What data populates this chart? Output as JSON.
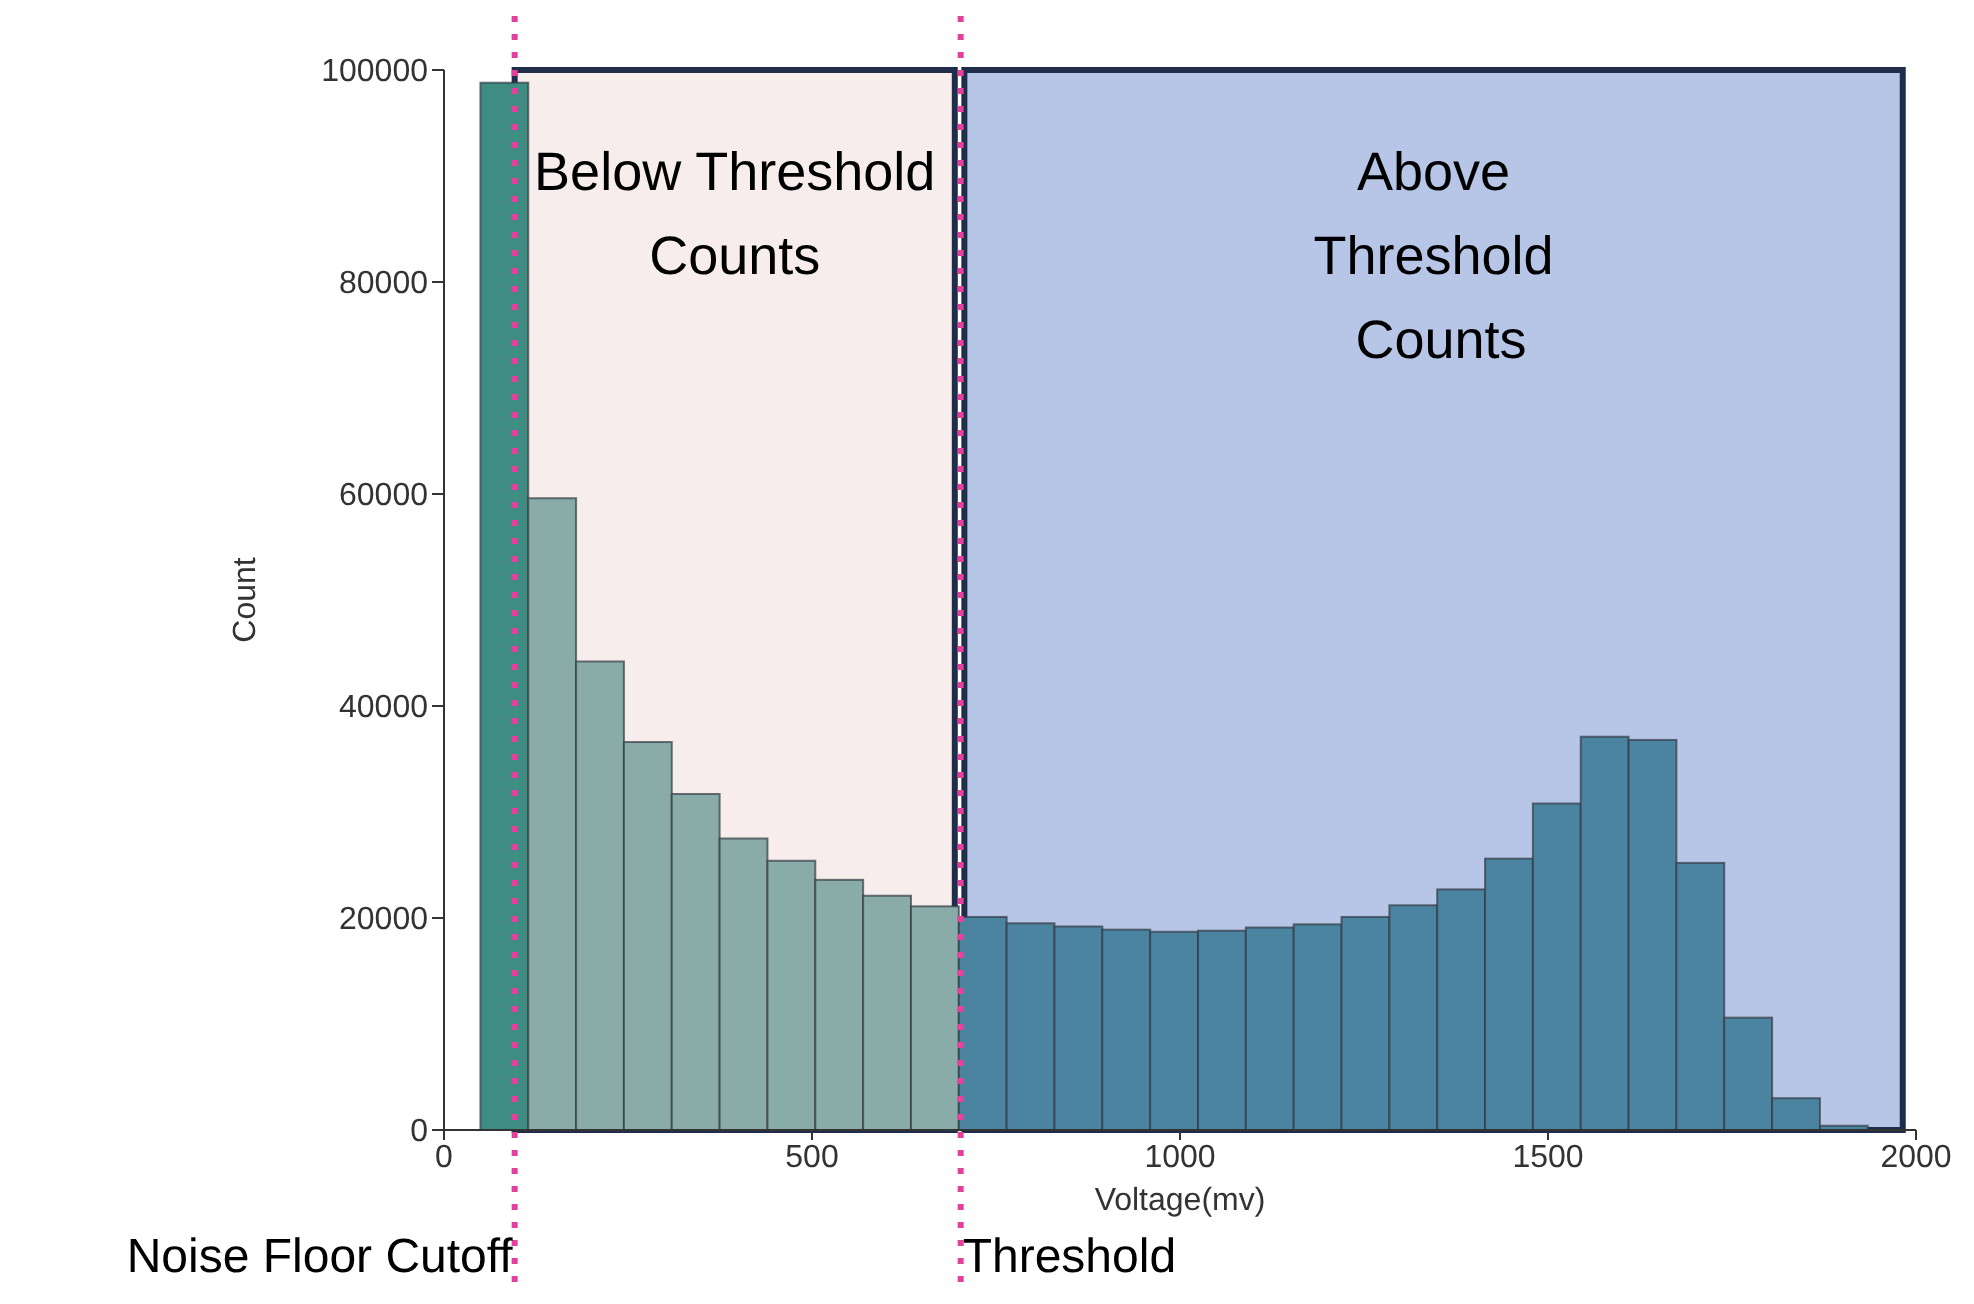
{
  "chart_data": {
    "type": "histogram",
    "xlabel": "Voltage(mv)",
    "ylabel": "Count",
    "bins": [
      50,
      115,
      180,
      245,
      310,
      375,
      440,
      505,
      570,
      635,
      700,
      765,
      830,
      895,
      960,
      1025,
      1090,
      1155,
      1220,
      1285,
      1350,
      1415,
      1480,
      1545,
      1610,
      1675,
      1740,
      1805,
      1870,
      1935
    ],
    "values": [
      98800,
      59600,
      44200,
      36600,
      31700,
      27500,
      25400,
      23600,
      22100,
      21100,
      20100,
      19500,
      19200,
      18900,
      18700,
      18800,
      19100,
      19400,
      20100,
      21200,
      22700,
      25600,
      30800,
      37100,
      36800,
      25200,
      10600,
      3000,
      400
    ],
    "colors": [
      "#3f8c82",
      "#8aaca8",
      "#8aaca8",
      "#8aaca8",
      "#8aaca8",
      "#8aaca8",
      "#8aaca8",
      "#8aaca8",
      "#8aaca8",
      "#8aaca8",
      "#4a84a0",
      "#4a84a0",
      "#4a84a0",
      "#4a84a0",
      "#4a84a0",
      "#4a84a0",
      "#4a84a0",
      "#4a84a0",
      "#4a84a0",
      "#4a84a0",
      "#4a84a0",
      "#4a84a0",
      "#4a84a0",
      "#4a84a0",
      "#4a84a0",
      "#4a84a0",
      "#4a84a0",
      "#4a84a0",
      "#4a84a0"
    ],
    "xlim": [
      0,
      2000
    ],
    "xticks": [
      0,
      500,
      1000,
      1500,
      2000
    ],
    "ylim": [
      0,
      100000
    ],
    "yticks": [
      0,
      20000,
      40000,
      60000,
      80000,
      100000
    ],
    "bands": [
      {
        "axis": "x",
        "from": 96,
        "to": 694,
        "label": "Below Threshold\nCounts",
        "color": "#f7eded"
      },
      {
        "axis": "x",
        "from": 707,
        "to": 1982,
        "label": "Above\nThreshold\n Counts",
        "color": "#b7c6e6"
      }
    ],
    "ref_lines": [
      {
        "axis": "x",
        "value": 96,
        "label": "Noise Floor Cutoff",
        "color": "#e83e9c",
        "line_style": "dotted"
      },
      {
        "axis": "x",
        "value": 702,
        "label": "Threshold",
        "color": "#e83e9c",
        "line_style": "dotted"
      }
    ]
  }
}
